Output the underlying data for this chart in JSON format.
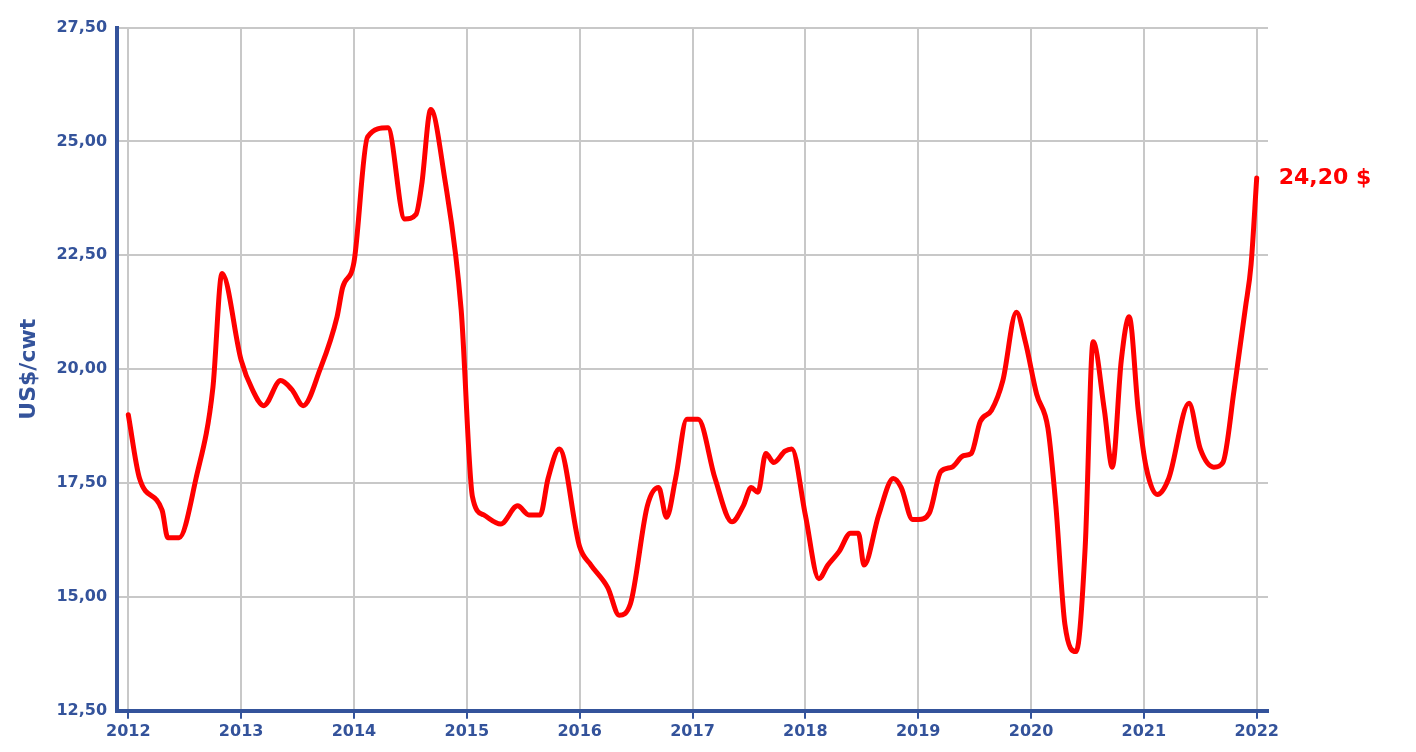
{
  "chart_data": {
    "type": "line",
    "ylabel": "US$/cwt",
    "xlim": [
      2011.9,
      2022.1
    ],
    "xticks": [
      2012,
      2013,
      2014,
      2015,
      2016,
      2017,
      2018,
      2019,
      2020,
      2021,
      2022
    ],
    "ylim": [
      12.5,
      27.5
    ],
    "yticks": [
      {
        "value": 12.5,
        "label": "12,50"
      },
      {
        "value": 15,
        "label": "15,00"
      },
      {
        "value": 17.5,
        "label": "17,50"
      },
      {
        "value": 20,
        "label": "20,00"
      },
      {
        "value": 22.5,
        "label": "22,50"
      },
      {
        "value": 25,
        "label": "25,00"
      },
      {
        "value": 27.5,
        "label": "27,50"
      }
    ],
    "grid": true,
    "legend": false,
    "marker": "none",
    "line_style": "solid",
    "annotations": [
      {
        "text": "24,20 $",
        "x": 2022,
        "y": 24.2
      }
    ],
    "series": [
      {
        "color": "#ff0000",
        "x": [
          2012,
          2012.1,
          2012.3,
          2012.35,
          2012.45,
          2012.6,
          2012.75,
          2012.83,
          2013,
          2013.1,
          2013.2,
          2013.35,
          2013.45,
          2013.55,
          2013.7,
          2013.85,
          2013.9,
          2014,
          2014.12,
          2014.3,
          2014.45,
          2014.55,
          2014.6,
          2014.68,
          2014.8,
          2014.95,
          2015.05,
          2015.15,
          2015.3,
          2015.45,
          2015.55,
          2015.65,
          2015.72,
          2015.82,
          2016,
          2016.1,
          2016.25,
          2016.35,
          2016.45,
          2016.6,
          2016.7,
          2016.77,
          2016.85,
          2016.95,
          2017.05,
          2017.2,
          2017.35,
          2017.45,
          2017.52,
          2017.58,
          2017.65,
          2017.72,
          2017.82,
          2017.88,
          2018,
          2018.12,
          2018.2,
          2018.3,
          2018.4,
          2018.47,
          2018.52,
          2018.65,
          2018.78,
          2018.85,
          2018.95,
          2019,
          2019.1,
          2019.2,
          2019.3,
          2019.4,
          2019.47,
          2019.55,
          2019.65,
          2019.75,
          2019.87,
          2019.95,
          2020.05,
          2020.15,
          2020.22,
          2020.3,
          2020.4,
          2020.48,
          2020.55,
          2020.65,
          2020.72,
          2020.8,
          2020.87,
          2020.95,
          2021.02,
          2021.12,
          2021.22,
          2021.4,
          2021.5,
          2021.62,
          2021.7,
          2021.8,
          2021.9,
          2021.95,
          2022
        ],
        "values": [
          19.0,
          17.6,
          16.9,
          16.3,
          16.3,
          17.6,
          19.6,
          22.1,
          20.2,
          19.55,
          19.2,
          19.75,
          19.55,
          19.2,
          20.0,
          21.15,
          21.8,
          22.35,
          25.1,
          25.3,
          23.3,
          23.4,
          24.05,
          25.7,
          24.25,
          21.3,
          17.2,
          16.8,
          16.6,
          17.0,
          16.8,
          16.8,
          17.6,
          18.25,
          16.1,
          15.7,
          15.2,
          14.6,
          14.85,
          17.0,
          17.4,
          16.75,
          17.6,
          18.9,
          18.9,
          17.6,
          16.65,
          17.0,
          17.4,
          17.3,
          18.15,
          17.95,
          18.2,
          18.25,
          16.8,
          15.4,
          15.7,
          16.0,
          16.4,
          16.4,
          15.7,
          16.8,
          17.6,
          17.4,
          16.7,
          16.7,
          16.85,
          17.75,
          17.85,
          18.1,
          18.15,
          18.85,
          19.1,
          19.75,
          21.25,
          20.6,
          19.45,
          18.7,
          17.0,
          14.4,
          13.8,
          16.1,
          20.6,
          19.1,
          17.85,
          20.2,
          21.15,
          19.1,
          17.85,
          17.25,
          17.6,
          19.25,
          18.25,
          17.85,
          17.95,
          19.55,
          21.35,
          22.3,
          24.2
        ]
      }
    ]
  }
}
